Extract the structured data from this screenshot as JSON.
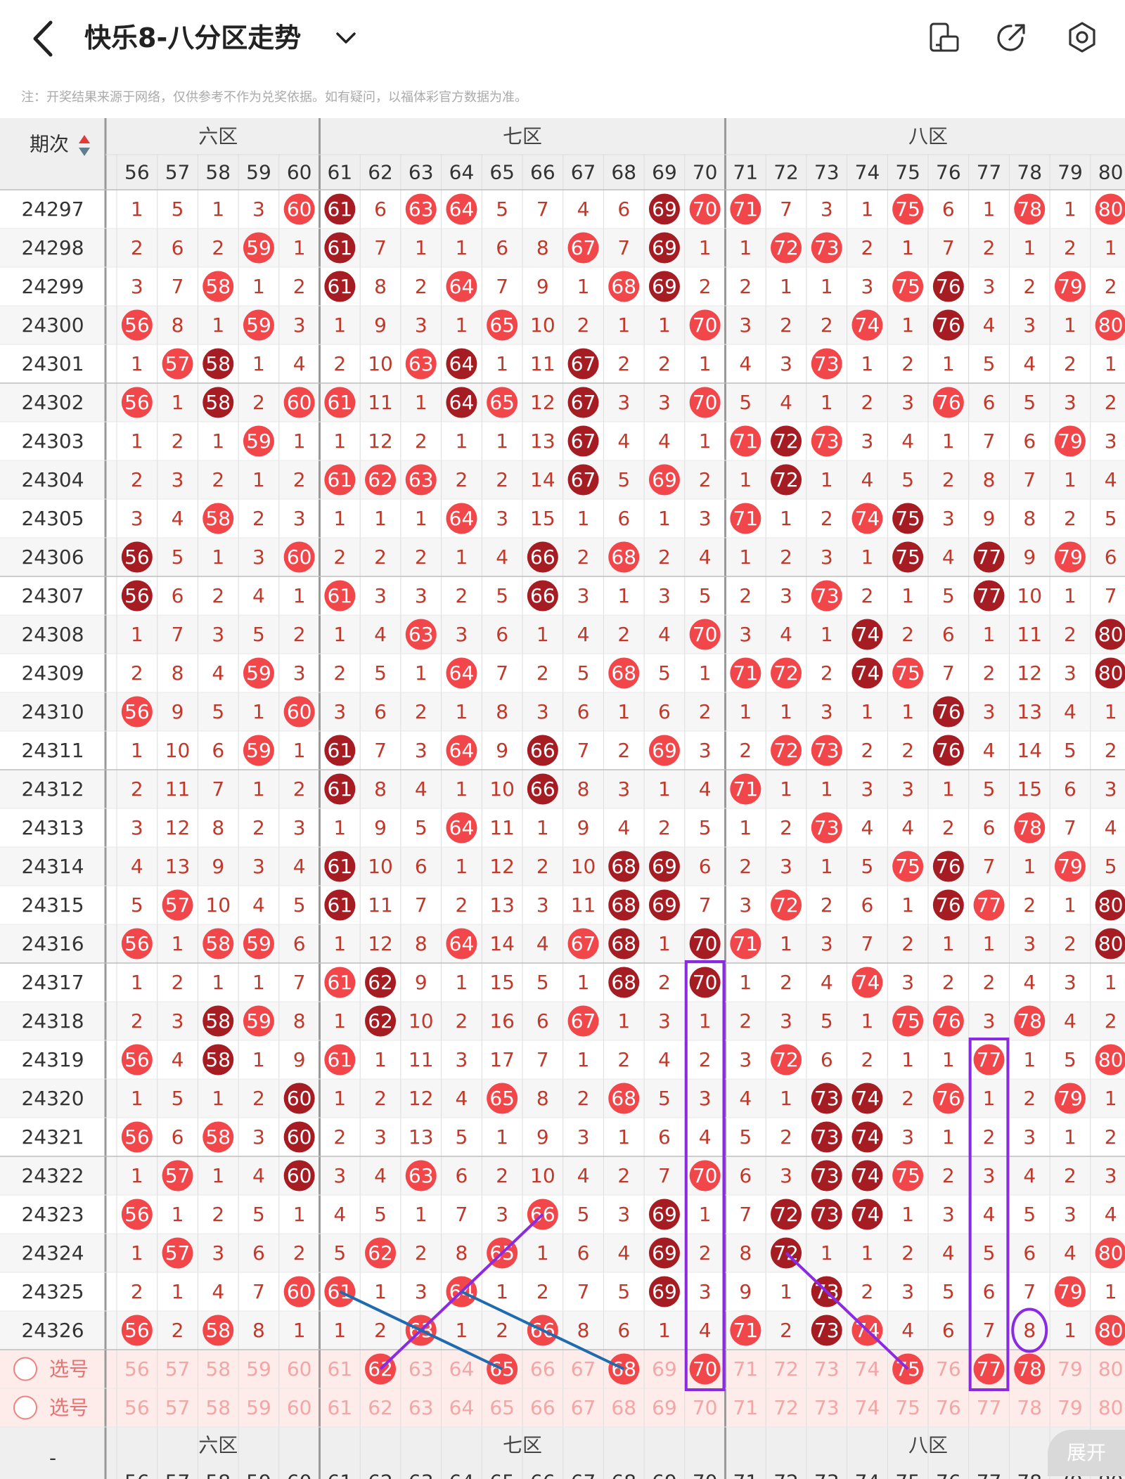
{
  "header": {
    "title": "快乐8-八分区走势",
    "back_icon": "chevron-left-icon",
    "dropdown_icon": "chevron-down-icon",
    "right_icons": [
      "screen-rotate-icon",
      "share-icon",
      "settings-icon"
    ]
  },
  "notice": "注：开奖结果来源于网络，仅供参考不作为兑奖依据。如有疑问，以福体彩官方数据为准。",
  "table": {
    "period_header": "期次",
    "zones": [
      {
        "label": "六区",
        "visible_label": "六区",
        "cols": [
          56,
          60
        ]
      },
      {
        "label": "七区",
        "cols": [
          61,
          70
        ]
      },
      {
        "label": "八区",
        "cols": [
          71,
          80
        ]
      }
    ],
    "numbers": [
      56,
      57,
      58,
      59,
      60,
      61,
      62,
      63,
      64,
      65,
      66,
      67,
      68,
      69,
      70,
      71,
      72,
      73,
      74,
      75,
      76,
      77,
      78,
      79,
      80
    ],
    "rows": [
      {
        "p": "24297",
        "v": [
          1,
          5,
          1,
          3,
          60,
          61,
          6,
          63,
          64,
          5,
          7,
          4,
          6,
          69,
          70,
          71,
          7,
          3,
          1,
          75,
          6,
          1,
          78,
          1,
          80
        ]
      },
      {
        "p": "24298",
        "v": [
          2,
          6,
          2,
          59,
          1,
          61,
          7,
          1,
          1,
          6,
          8,
          67,
          7,
          69,
          1,
          1,
          72,
          73,
          2,
          1,
          7,
          2,
          1,
          2,
          1
        ]
      },
      {
        "p": "24299",
        "v": [
          3,
          7,
          58,
          1,
          2,
          61,
          8,
          2,
          64,
          7,
          9,
          1,
          68,
          69,
          2,
          2,
          1,
          1,
          3,
          75,
          76,
          3,
          2,
          79,
          2
        ]
      },
      {
        "p": "24300",
        "v": [
          56,
          8,
          1,
          59,
          3,
          1,
          9,
          3,
          1,
          65,
          10,
          2,
          1,
          1,
          70,
          3,
          2,
          2,
          74,
          1,
          76,
          4,
          3,
          1,
          80
        ]
      },
      {
        "p": "24301",
        "v": [
          1,
          57,
          58,
          1,
          4,
          2,
          10,
          63,
          64,
          1,
          11,
          67,
          2,
          2,
          1,
          4,
          3,
          73,
          1,
          2,
          1,
          5,
          4,
          2,
          1
        ]
      },
      {
        "p": "24302",
        "v": [
          56,
          1,
          58,
          2,
          60,
          61,
          11,
          1,
          64,
          65,
          12,
          67,
          3,
          3,
          70,
          5,
          4,
          1,
          2,
          3,
          76,
          6,
          5,
          3,
          2
        ]
      },
      {
        "p": "24303",
        "v": [
          1,
          2,
          1,
          59,
          1,
          1,
          12,
          2,
          1,
          1,
          13,
          67,
          4,
          4,
          1,
          71,
          72,
          73,
          3,
          4,
          1,
          7,
          6,
          79,
          3
        ]
      },
      {
        "p": "24304",
        "v": [
          2,
          3,
          2,
          1,
          2,
          61,
          62,
          63,
          2,
          2,
          14,
          67,
          5,
          69,
          2,
          1,
          72,
          1,
          4,
          5,
          2,
          8,
          7,
          1,
          4
        ]
      },
      {
        "p": "24305",
        "v": [
          3,
          4,
          58,
          2,
          3,
          1,
          1,
          1,
          64,
          3,
          15,
          1,
          6,
          1,
          3,
          71,
          1,
          2,
          74,
          75,
          3,
          9,
          8,
          2,
          5
        ]
      },
      {
        "p": "24306",
        "v": [
          56,
          5,
          1,
          3,
          60,
          2,
          2,
          2,
          1,
          4,
          66,
          2,
          68,
          2,
          4,
          1,
          2,
          3,
          1,
          75,
          4,
          77,
          9,
          79,
          6
        ]
      },
      {
        "p": "24307",
        "v": [
          56,
          6,
          2,
          4,
          1,
          61,
          3,
          3,
          2,
          5,
          66,
          3,
          1,
          3,
          5,
          2,
          3,
          73,
          2,
          1,
          5,
          77,
          10,
          1,
          7
        ]
      },
      {
        "p": "24308",
        "v": [
          1,
          7,
          3,
          5,
          2,
          1,
          4,
          63,
          3,
          6,
          1,
          4,
          2,
          4,
          70,
          3,
          4,
          1,
          74,
          2,
          6,
          1,
          11,
          2,
          80
        ]
      },
      {
        "p": "24309",
        "v": [
          2,
          8,
          4,
          59,
          3,
          2,
          5,
          1,
          64,
          7,
          2,
          5,
          68,
          5,
          1,
          71,
          72,
          2,
          74,
          75,
          7,
          2,
          12,
          3,
          80
        ]
      },
      {
        "p": "24310",
        "v": [
          56,
          9,
          5,
          1,
          60,
          3,
          6,
          2,
          1,
          8,
          3,
          6,
          1,
          6,
          2,
          1,
          1,
          3,
          1,
          1,
          76,
          3,
          13,
          4,
          1
        ]
      },
      {
        "p": "24311",
        "v": [
          1,
          10,
          6,
          59,
          1,
          61,
          7,
          3,
          64,
          9,
          66,
          7,
          2,
          69,
          3,
          2,
          72,
          73,
          2,
          2,
          76,
          4,
          14,
          5,
          2
        ]
      },
      {
        "p": "24312",
        "v": [
          2,
          11,
          7,
          1,
          2,
          61,
          8,
          4,
          1,
          10,
          66,
          8,
          3,
          1,
          4,
          71,
          1,
          1,
          3,
          3,
          1,
          5,
          15,
          6,
          3
        ]
      },
      {
        "p": "24313",
        "v": [
          3,
          12,
          8,
          2,
          3,
          1,
          9,
          5,
          64,
          11,
          1,
          9,
          4,
          2,
          5,
          1,
          2,
          73,
          4,
          4,
          2,
          6,
          78,
          7,
          4
        ]
      },
      {
        "p": "24314",
        "v": [
          4,
          13,
          9,
          3,
          4,
          61,
          10,
          6,
          1,
          12,
          2,
          10,
          68,
          69,
          6,
          2,
          3,
          1,
          5,
          75,
          76,
          7,
          1,
          79,
          5
        ]
      },
      {
        "p": "24315",
        "v": [
          5,
          57,
          10,
          4,
          5,
          61,
          11,
          7,
          2,
          13,
          3,
          11,
          68,
          69,
          7,
          3,
          72,
          2,
          6,
          1,
          76,
          77,
          2,
          1,
          80
        ]
      },
      {
        "p": "24316",
        "v": [
          56,
          1,
          58,
          59,
          6,
          1,
          12,
          8,
          64,
          14,
          4,
          67,
          68,
          1,
          70,
          71,
          1,
          3,
          7,
          2,
          1,
          1,
          3,
          2,
          80
        ]
      },
      {
        "p": "24317",
        "v": [
          1,
          2,
          1,
          1,
          7,
          61,
          62,
          9,
          1,
          15,
          5,
          1,
          68,
          2,
          70,
          1,
          2,
          4,
          74,
          3,
          2,
          2,
          4,
          3,
          1
        ]
      },
      {
        "p": "24318",
        "v": [
          2,
          3,
          58,
          59,
          8,
          1,
          62,
          10,
          2,
          16,
          6,
          67,
          1,
          3,
          1,
          2,
          3,
          5,
          1,
          75,
          76,
          3,
          78,
          4,
          2
        ]
      },
      {
        "p": "24319",
        "v": [
          56,
          4,
          58,
          1,
          9,
          61,
          1,
          11,
          3,
          17,
          7,
          1,
          2,
          4,
          2,
          3,
          72,
          6,
          2,
          1,
          1,
          77,
          1,
          5,
          80
        ]
      },
      {
        "p": "24320",
        "v": [
          1,
          5,
          1,
          2,
          60,
          1,
          2,
          12,
          4,
          65,
          8,
          2,
          68,
          5,
          3,
          4,
          1,
          73,
          74,
          2,
          76,
          1,
          2,
          79,
          1
        ]
      },
      {
        "p": "24321",
        "v": [
          56,
          6,
          58,
          3,
          60,
          2,
          3,
          13,
          5,
          1,
          9,
          3,
          1,
          6,
          4,
          5,
          2,
          73,
          74,
          3,
          1,
          2,
          3,
          1,
          2
        ]
      },
      {
        "p": "24322",
        "v": [
          1,
          57,
          1,
          4,
          60,
          3,
          4,
          63,
          6,
          2,
          10,
          4,
          2,
          7,
          70,
          6,
          3,
          73,
          74,
          75,
          2,
          3,
          4,
          2,
          3
        ]
      },
      {
        "p": "24323",
        "v": [
          56,
          1,
          2,
          5,
          1,
          4,
          5,
          1,
          7,
          3,
          66,
          5,
          3,
          69,
          1,
          7,
          72,
          73,
          74,
          1,
          3,
          4,
          5,
          3,
          4
        ]
      },
      {
        "p": "24324",
        "v": [
          1,
          57,
          3,
          6,
          2,
          5,
          62,
          2,
          8,
          65,
          1,
          6,
          4,
          69,
          2,
          8,
          72,
          1,
          1,
          2,
          4,
          5,
          6,
          4,
          80
        ]
      },
      {
        "p": "24325",
        "v": [
          2,
          1,
          4,
          7,
          60,
          61,
          1,
          3,
          64,
          1,
          2,
          7,
          5,
          69,
          3,
          9,
          1,
          73,
          2,
          3,
          5,
          6,
          7,
          79,
          1
        ]
      },
      {
        "p": "24326",
        "v": [
          56,
          2,
          58,
          8,
          1,
          1,
          2,
          63,
          1,
          2,
          66,
          8,
          6,
          1,
          4,
          71,
          2,
          73,
          74,
          4,
          6,
          7,
          8,
          1,
          80
        ]
      }
    ],
    "select_rows": [
      {
        "label": "选号",
        "picked": [
          62,
          65,
          68,
          70,
          75,
          77,
          78
        ]
      },
      {
        "label": "选号",
        "picked": []
      }
    ],
    "footer_dash": "-",
    "expand_label": "展开"
  },
  "colors": {
    "ball_red": "#f2474a",
    "ball_dark": "#a51c22",
    "number_text": "#c0392b",
    "grid": "#dcdcdc",
    "zone_divider": "#9a9a9a",
    "header_bg": "#efefef",
    "select_bg": "#fdecea",
    "frame_purple": "#8a2be2",
    "line_blue": "#1f6bb0"
  }
}
